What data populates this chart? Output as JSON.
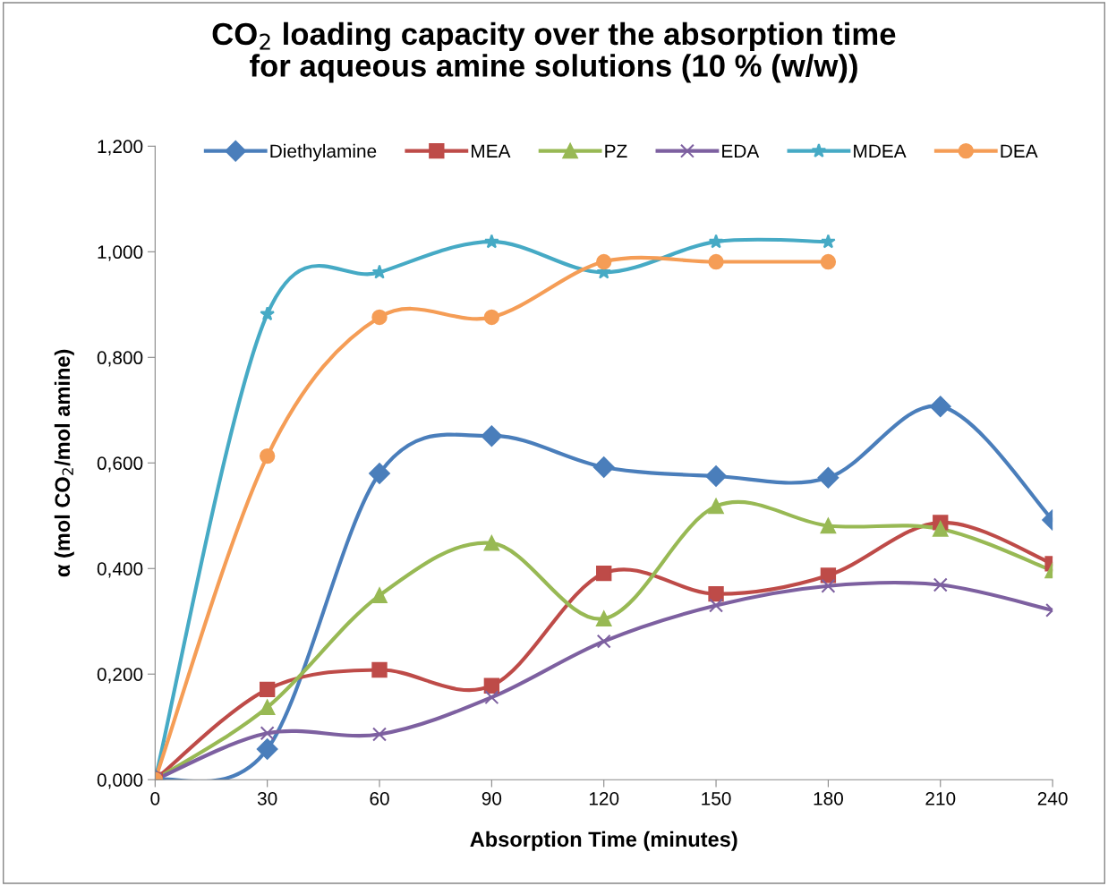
{
  "chart_data": {
    "type": "line",
    "title": "CO$_{2}$ loading capacity over the absorption time\nfor aqueous amine solutions (10 % (w/w))",
    "xlabel": "Absorption Time (minutes)",
    "ylabel": "α (mol CO$_{2}$/mol amine)",
    "x": [
      0,
      30,
      60,
      90,
      120,
      150,
      180,
      210,
      240
    ],
    "series": [
      {
        "name": "Diethylamine",
        "color": "#4a7ebb",
        "marker": "diamond",
        "values": [
          0,
          0.058,
          0.58,
          0.651,
          0.592,
          0.575,
          0.572,
          0.707,
          0.492
        ]
      },
      {
        "name": "MEA",
        "color": "#be4b48",
        "marker": "square",
        "values": [
          0,
          0.171,
          0.208,
          0.178,
          0.391,
          0.352,
          0.387,
          0.487,
          0.409
        ]
      },
      {
        "name": "PZ",
        "color": "#98b954",
        "marker": "triangle",
        "values": [
          0,
          0.137,
          0.349,
          0.448,
          0.305,
          0.518,
          0.481,
          0.475,
          0.396
        ]
      },
      {
        "name": "EDA",
        "color": "#7d60a0",
        "marker": "cross",
        "values": [
          0,
          0.088,
          0.086,
          0.156,
          0.262,
          0.33,
          0.367,
          0.369,
          0.321
        ]
      },
      {
        "name": "MDEA",
        "color": "#46aac5",
        "marker": "star",
        "values": [
          0,
          0.882,
          0.961,
          1.019,
          0.961,
          1.019,
          1.019,
          null,
          null
        ]
      },
      {
        "name": "DEA",
        "color": "#f59d56",
        "marker": "circle",
        "values": [
          0,
          0.613,
          0.876,
          0.876,
          0.981,
          0.981,
          0.981,
          null,
          null
        ]
      }
    ],
    "xlim": [
      0,
      240
    ],
    "xticks": [
      0,
      30,
      60,
      90,
      120,
      150,
      180,
      210,
      240
    ],
    "ylim": [
      0,
      1.2
    ],
    "yticks": [
      {
        "value": 0,
        "label": "0,000"
      },
      {
        "value": 0.2,
        "label": "0,200"
      },
      {
        "value": 0.4,
        "label": "0,400"
      },
      {
        "value": 0.6,
        "label": "0,600"
      },
      {
        "value": 0.8,
        "label": "0,800"
      },
      {
        "value": 1.0,
        "label": "1,000"
      },
      {
        "value": 1.2,
        "label": "1,200"
      }
    ],
    "grid": false,
    "legend": "top",
    "line_style": "solid"
  }
}
